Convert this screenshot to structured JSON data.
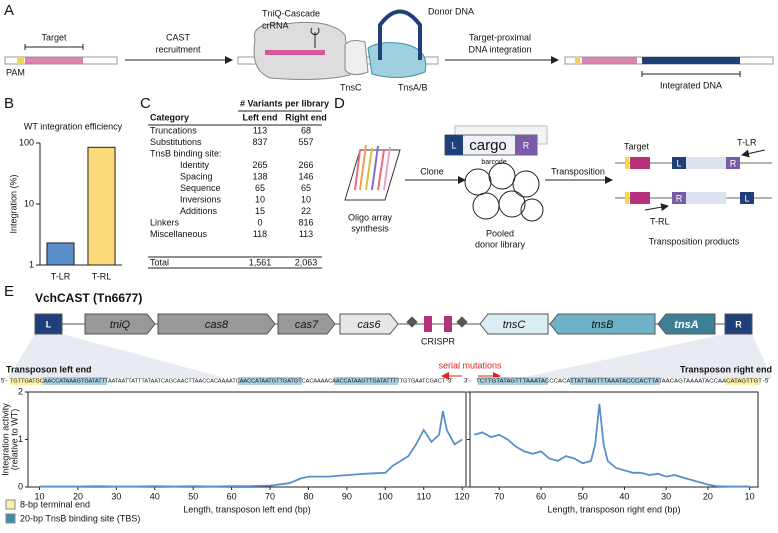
{
  "panels": {
    "a": "A",
    "b": "B",
    "c": "C",
    "d": "D",
    "e": "E"
  },
  "panel_a": {
    "target": "Target",
    "pam": "PAM",
    "step1": [
      "CAST",
      "recruitment"
    ],
    "crrna": "crRNA",
    "cascade": "TniQ-Cascade",
    "donor": "Donor DNA",
    "tnsc": "TnsC",
    "tnsab": "TnsA/B",
    "step2": [
      "Target-proximal",
      "DNA integration"
    ],
    "integrated": "Integrated DNA"
  },
  "table": {
    "group_header": "# Variants per library",
    "header": [
      "Category",
      "Left end",
      "Right end"
    ],
    "rows": [
      [
        "Truncations",
        "113",
        "68"
      ],
      [
        "Substitutions",
        "837",
        "557"
      ],
      [
        "TnsB binding site:",
        "",
        ""
      ],
      [
        "Identity",
        "265",
        "266"
      ],
      [
        "Spacing",
        "138",
        "146"
      ],
      [
        "Sequence",
        "65",
        "65"
      ],
      [
        "Inversions",
        "10",
        "10"
      ],
      [
        "Additions",
        "15",
        "22"
      ],
      [
        "Linkers",
        "0",
        "816"
      ],
      [
        "Miscellaneous",
        "118",
        "113"
      ],
      [
        "Total",
        "1,561",
        "2,063"
      ]
    ]
  },
  "panel_d": {
    "oligo": [
      "Oligo array",
      "synthesis"
    ],
    "clone": "Clone",
    "cargo": "cargo",
    "l": "L",
    "r": "R",
    "barcode": "barcode",
    "pooled": [
      "Pooled",
      "donor library"
    ],
    "transposition": "Transposition",
    "target": "Target",
    "tlr": "T-LR",
    "trl": "T-RL",
    "products": "Transposition products"
  },
  "panel_e": {
    "title": "VchCAST (Tn6677)",
    "genes": [
      "L",
      "tniQ",
      "cas8",
      "cas7",
      "cas6",
      "tnsC",
      "tnsB",
      "tnsA",
      "R"
    ],
    "crispr": "CRISPR",
    "left_end": "Transposon left end",
    "right_end": "Transposon right end",
    "serial": "serial mutations",
    "seq_left": [
      "5'-",
      "TGTTGATGCAACCATAAAGTGATATTTAATAATTATTTATAATCAGCAACTTAACCACAAAATCAACCATAATGTTGATGTCACAAAACAACCATAAGTTGATATTTTTGTGAATCGACT",
      "-3'"
    ],
    "seq_right": [
      "3'-",
      "TCTTGTATAGTTTAAATACCCACATTATTAGTTTAAATACCCACTTATAACAGTAAAATACCAACATAGTTGT",
      "-5'"
    ],
    "legend": [
      {
        "label": "8-bp terminal end",
        "color": "#fbf0a8"
      },
      {
        "label": "20-bp TnsB binding site (TBS)",
        "color": "#3c8fa8"
      }
    ]
  },
  "chart_data": [
    {
      "type": "bar",
      "title": "WT integration efficiency",
      "ylabel": "Integration (%)",
      "log": true,
      "categories": [
        "T-LR",
        "T-RL"
      ],
      "values": [
        2.3,
        85
      ],
      "colors": [
        "#5b8fc9",
        "#fcd97a"
      ],
      "ylim": [
        1,
        100
      ],
      "yticks": [
        1,
        10,
        100
      ]
    },
    {
      "type": "line",
      "ylabel": [
        "Integration activity",
        "(relative to WT)"
      ],
      "xlabel": "Length, transposon left end (bp)",
      "color": "#5b8fc9",
      "x": [
        10,
        15,
        20,
        25,
        30,
        35,
        40,
        45,
        50,
        55,
        60,
        65,
        70,
        75,
        78,
        80,
        85,
        90,
        95,
        100,
        102,
        104,
        106,
        108,
        110,
        112,
        114,
        115,
        116,
        118,
        120
      ],
      "values": [
        0.01,
        0.01,
        0.01,
        0.02,
        0.01,
        0.01,
        0.02,
        0.01,
        0.02,
        0.01,
        0.02,
        0.02,
        0.03,
        0.08,
        0.18,
        0.22,
        0.22,
        0.25,
        0.28,
        0.3,
        0.45,
        0.55,
        0.65,
        0.9,
        1.2,
        0.95,
        1.1,
        1.6,
        1.2,
        0.9,
        1.0
      ],
      "xlim": [
        7,
        121
      ],
      "xticks": [
        10,
        20,
        30,
        40,
        50,
        60,
        70,
        80,
        90,
        100,
        110,
        120
      ],
      "ylim": [
        0,
        2
      ],
      "yticks": [
        0,
        1,
        2
      ]
    },
    {
      "type": "line",
      "xlabel": "Length, transposon right end (bp)",
      "color": "#5b8fc9",
      "x": [
        76,
        74,
        72,
        70,
        68,
        66,
        64,
        62,
        60,
        58,
        56,
        54,
        52,
        50,
        48,
        47,
        46,
        45,
        44,
        42,
        40,
        38,
        36,
        34,
        32,
        30,
        28,
        26,
        24,
        22,
        20,
        18,
        15,
        10
      ],
      "values": [
        1.1,
        1.15,
        1.05,
        1.1,
        1.0,
        0.85,
        0.75,
        0.7,
        0.75,
        0.6,
        0.55,
        0.65,
        0.6,
        0.5,
        0.55,
        0.9,
        1.75,
        0.9,
        0.55,
        0.4,
        0.35,
        0.3,
        0.3,
        0.25,
        0.28,
        0.22,
        0.25,
        0.2,
        0.15,
        0.1,
        0.05,
        0.02,
        0.01,
        0.01
      ],
      "xlim": [
        77,
        8
      ],
      "xticks": [
        70,
        60,
        50,
        40,
        30,
        20,
        10
      ],
      "ylim": [
        0,
        2
      ],
      "yticks": [
        0,
        1,
        2
      ]
    }
  ]
}
